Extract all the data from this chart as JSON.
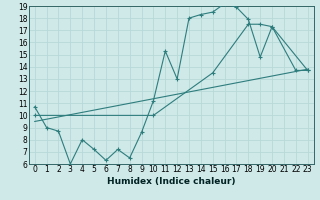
{
  "xlabel": "Humidex (Indice chaleur)",
  "ylabel": "",
  "bg_color": "#cfe8e8",
  "grid_color": "#b8d8d8",
  "line_color": "#2e7d7d",
  "xlim": [
    -0.5,
    23.5
  ],
  "ylim": [
    6,
    19
  ],
  "xticks": [
    0,
    1,
    2,
    3,
    4,
    5,
    6,
    7,
    8,
    9,
    10,
    11,
    12,
    13,
    14,
    15,
    16,
    17,
    18,
    19,
    20,
    21,
    22,
    23
  ],
  "yticks": [
    6,
    7,
    8,
    9,
    10,
    11,
    12,
    13,
    14,
    15,
    16,
    17,
    18,
    19
  ],
  "line1_x": [
    0,
    1,
    2,
    3,
    4,
    5,
    6,
    7,
    8,
    9,
    10,
    11,
    12,
    13,
    14,
    15,
    16,
    17,
    18,
    19,
    20,
    22,
    23
  ],
  "line1_y": [
    10.7,
    9.0,
    8.7,
    6.0,
    8.0,
    7.2,
    6.3,
    7.2,
    6.5,
    8.6,
    11.2,
    15.3,
    13.0,
    18.0,
    18.3,
    18.5,
    19.2,
    18.9,
    17.9,
    14.8,
    17.3,
    13.7,
    13.7
  ],
  "line2_x": [
    0,
    23
  ],
  "line2_y": [
    9.5,
    13.8
  ],
  "line3_x": [
    0,
    10,
    15,
    18,
    19,
    20,
    23
  ],
  "line3_y": [
    10.0,
    10.0,
    13.5,
    17.5,
    17.5,
    17.3,
    13.7
  ],
  "xlabel_fontsize": 6.5,
  "tick_fontsize": 5.5
}
